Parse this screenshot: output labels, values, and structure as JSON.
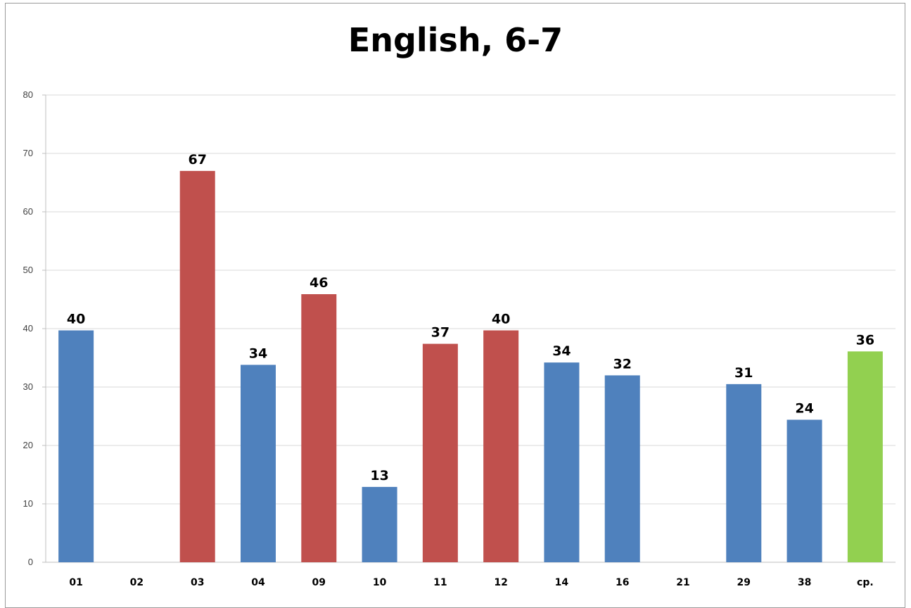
{
  "chart_data": {
    "type": "bar",
    "title": "English, 6-7",
    "xlabel": "",
    "ylabel": "",
    "ylim": [
      0,
      80
    ],
    "yticks": [
      0,
      10,
      20,
      30,
      40,
      50,
      60,
      70,
      80
    ],
    "grid": true,
    "legend": "none",
    "categories": [
      "01",
      "02",
      "03",
      "04",
      "09",
      "10",
      "11",
      "12",
      "14",
      "16",
      "21",
      "29",
      "38",
      "ср."
    ],
    "values": [
      39.7,
      null,
      67,
      33.8,
      45.9,
      12.9,
      37.4,
      39.7,
      34.2,
      32,
      null,
      30.5,
      24.4,
      36.1
    ],
    "data_labels": [
      "40",
      "",
      "67",
      "34",
      "46",
      "13",
      "37",
      "40",
      "34",
      "32",
      "",
      "31",
      "24",
      "36"
    ],
    "bar_colors": [
      "#4f81bd",
      "#4f81bd",
      "#c0504d",
      "#4f81bd",
      "#c0504d",
      "#4f81bd",
      "#c0504d",
      "#c0504d",
      "#4f81bd",
      "#4f81bd",
      "#4f81bd",
      "#4f81bd",
      "#4f81bd",
      "#92d050"
    ],
    "gridline_color": "#d9d9d9",
    "axis_color": "#bfbfbf"
  }
}
